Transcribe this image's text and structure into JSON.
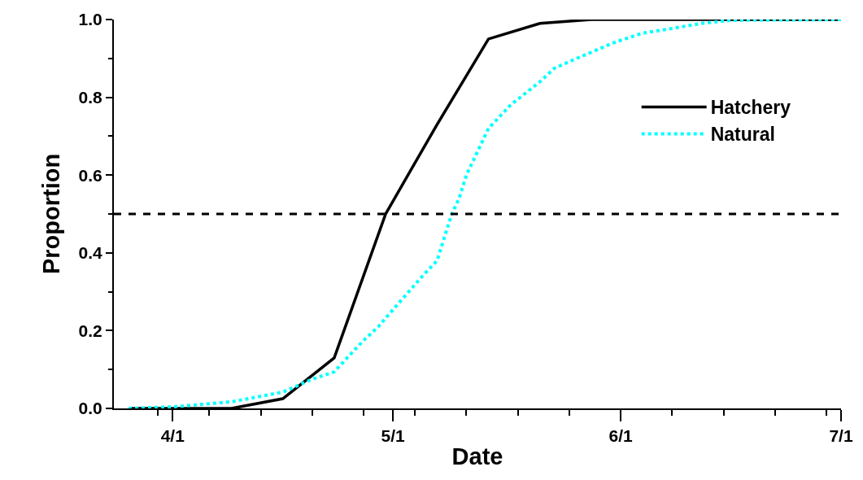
{
  "chart_data": {
    "type": "line",
    "xlabel": "Date",
    "ylabel": "Proportion",
    "xlim": [
      "--03-24",
      "--07-01"
    ],
    "xticks": [
      {
        "value": "--04-01",
        "label": "4/1"
      },
      {
        "value": "--05-01",
        "label": "5/1"
      },
      {
        "value": "--06-01",
        "label": "6/1"
      },
      {
        "value": "--07-01",
        "label": "7/1"
      },
      {
        "value": "--03-30",
        "label": null
      },
      {
        "value": "--04-06",
        "label": null
      },
      {
        "value": "--04-13",
        "label": null
      },
      {
        "value": "--04-20",
        "label": null
      },
      {
        "value": "--04-27",
        "label": null
      },
      {
        "value": "--05-04",
        "label": null
      },
      {
        "value": "--05-11",
        "label": null
      },
      {
        "value": "--05-18",
        "label": null
      },
      {
        "value": "--05-25",
        "label": null
      },
      {
        "value": "--06-08",
        "label": null
      },
      {
        "value": "--06-15",
        "label": null
      },
      {
        "value": "--06-22",
        "label": null
      },
      {
        "value": "--06-29",
        "label": null
      }
    ],
    "ylim": [
      0,
      1
    ],
    "yticks": [
      {
        "value": 0,
        "label": "0.0"
      },
      {
        "value": 0.2,
        "label": "0.2"
      },
      {
        "value": 0.4,
        "label": "0.4"
      },
      {
        "value": 0.6,
        "label": "0.6"
      },
      {
        "value": 0.8,
        "label": "0.8"
      },
      {
        "value": 1,
        "label": "1.0"
      },
      {
        "value": 0.1,
        "label": null
      },
      {
        "value": 0.3,
        "label": null
      },
      {
        "value": 0.5,
        "label": null
      },
      {
        "value": 0.7,
        "label": null
      },
      {
        "value": 0.9,
        "label": null
      }
    ],
    "legend": "top right",
    "marker": "none",
    "ref_lines": [
      {
        "axis": "y",
        "value": 0.5,
        "label": null,
        "color": "#000000",
        "line_style": "dashed"
      }
    ],
    "series": [
      {
        "name": "Hatchery",
        "color": "#000000",
        "line_style": "solid",
        "x": [
          "--03-26",
          "--04-09",
          "--04-16",
          "--04-23",
          "--04-30",
          "--05-07",
          "--05-14",
          "--05-21",
          "--05-28",
          "--07-01"
        ],
        "values": [
          0,
          0,
          0.025,
          0.13,
          0.5,
          0.73,
          0.95,
          0.99,
          1,
          1
        ]
      },
      {
        "name": "Natural",
        "color": "#00ffff",
        "line_style": "dotted",
        "x": [
          "--03-26",
          "--04-01",
          "--04-09",
          "--04-16",
          "--04-20",
          "--04-23",
          "--04-25",
          "--04-27",
          "--04-29",
          "--05-01",
          "--05-05",
          "--05-07",
          "--05-08",
          "--05-09",
          "--05-10",
          "--05-11",
          "--05-12",
          "--05-13",
          "--05-14",
          "--05-17",
          "--05-21",
          "--05-23",
          "--05-26",
          "--05-31",
          "--06-04",
          "--06-08",
          "--06-12",
          "--06-16",
          "--07-01"
        ],
        "values": [
          0,
          0.004,
          0.017,
          0.042,
          0.075,
          0.094,
          0.135,
          0.175,
          0.21,
          0.254,
          0.34,
          0.38,
          0.44,
          0.5,
          0.54,
          0.6,
          0.64,
          0.68,
          0.72,
          0.78,
          0.84,
          0.875,
          0.9,
          0.94,
          0.965,
          0.977,
          0.99,
          0.998,
          1
        ]
      }
    ]
  }
}
